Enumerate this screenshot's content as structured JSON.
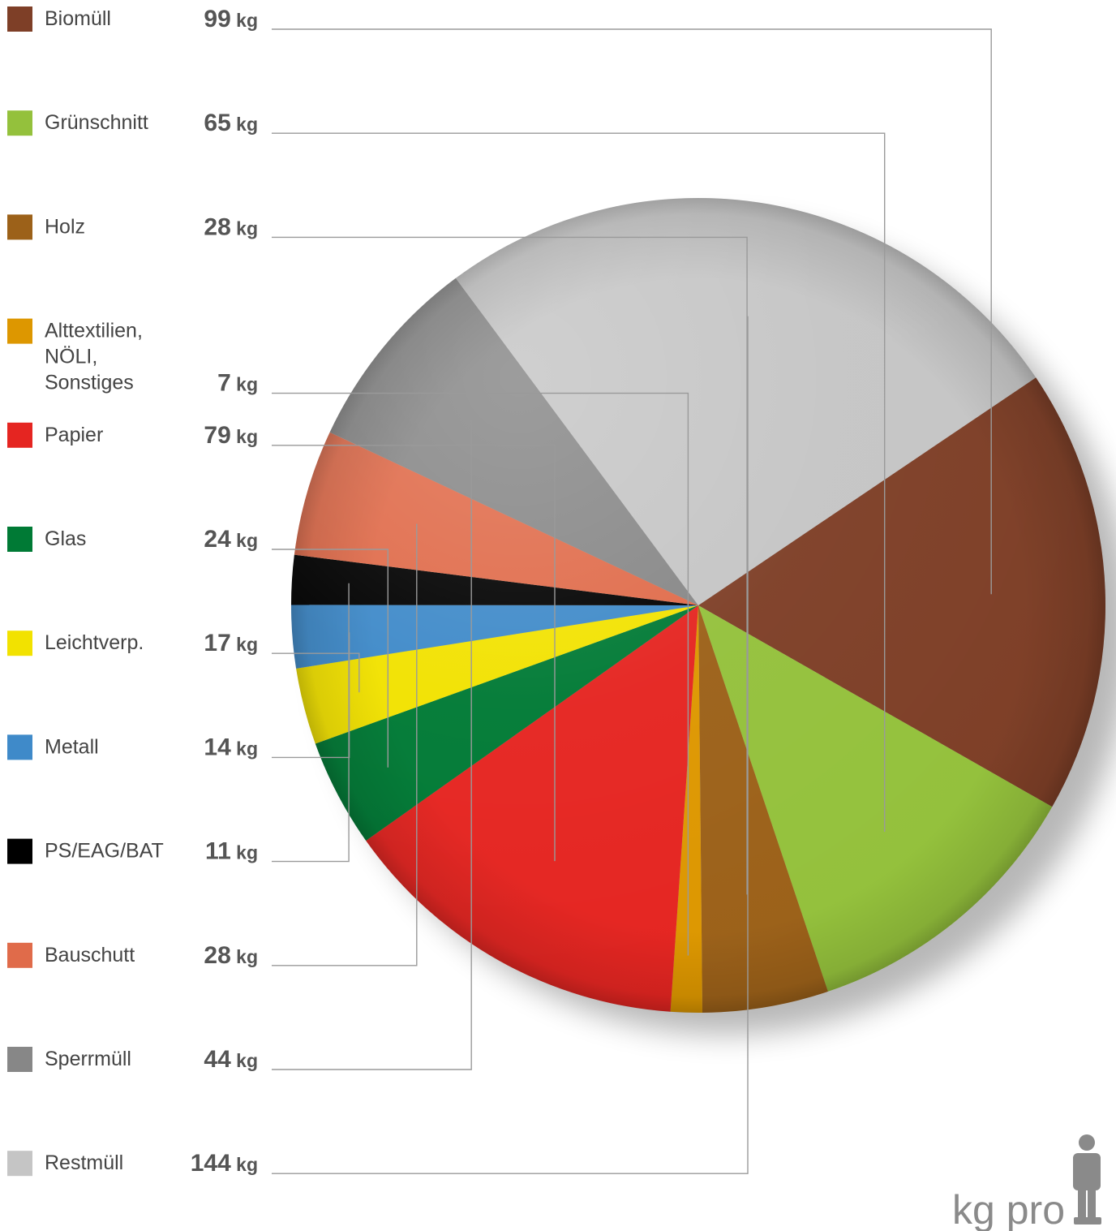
{
  "chart_data": {
    "type": "pie",
    "unit": "kg",
    "legend_position": "left",
    "series": [
      {
        "name": "Biomüll",
        "value": 99,
        "value_label": "99",
        "color": "#7e3f27"
      },
      {
        "name": "Grünschnitt",
        "value": 65,
        "value_label": "65",
        "color": "#94c13c"
      },
      {
        "name": "Holz",
        "value": 28,
        "value_label": "28",
        "color": "#9c6119"
      },
      {
        "name": "Alttextilien, NÖLI, Sonstiges",
        "label_lines": [
          "Alttextilien,",
          "NÖLI,",
          "Sonstiges"
        ],
        "value": 7,
        "value_label": "7",
        "color": "#dd9700"
      },
      {
        "name": "Papier",
        "value": 79,
        "value_label": "79",
        "color": "#e52521"
      },
      {
        "name": "Glas",
        "value": 24,
        "value_label": "24",
        "color": "#007a35"
      },
      {
        "name": "Leichtverp.",
        "value": 17,
        "value_label": "17",
        "color": "#f2e200"
      },
      {
        "name": "Metall",
        "value": 14,
        "value_label": "14",
        "color": "#3f8ac9"
      },
      {
        "name": "PS/EAG/BAT",
        "value": 11,
        "value_label": "11",
        "color": "#000000"
      },
      {
        "name": "Bauschutt",
        "value": 28,
        "value_label": "28",
        "color": "#e06b4a"
      },
      {
        "name": "Sperrmüll",
        "value": 44,
        "value_label": "44",
        "color": "#878787"
      },
      {
        "name": "Restmüll",
        "value": 144,
        "value_label": "144",
        "color": "#c5c5c5"
      }
    ]
  },
  "badge": {
    "text": "kg pro",
    "icon": "person-icon",
    "color": "#8a8a8a"
  }
}
